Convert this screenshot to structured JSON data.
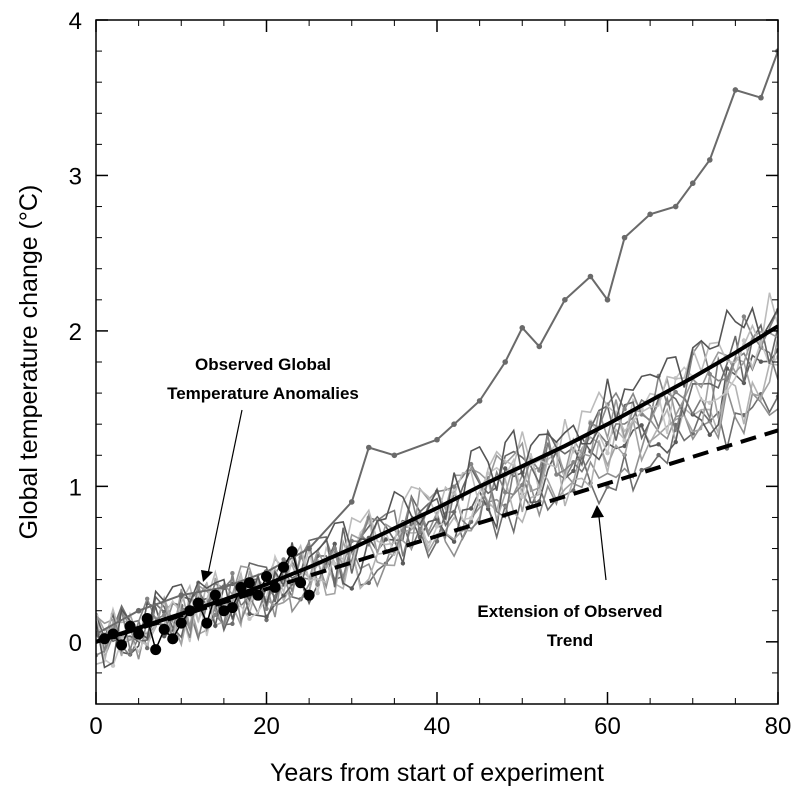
{
  "chart_data": {
    "type": "line",
    "title": "",
    "xlabel": "Years from start of experiment",
    "ylabel": "Global temperature change (°C)",
    "xlim": [
      0,
      80
    ],
    "ylim": [
      -0.4,
      4
    ],
    "xticks": [
      0,
      20,
      40,
      60,
      80
    ],
    "yticks": [
      0,
      1,
      2,
      3,
      4
    ],
    "grid": false,
    "legend": "none",
    "colors": {
      "ensemble": [
        "#6e6e6e",
        "#8f8f8f",
        "#b3b3b3",
        "#5a5a5a",
        "#a3a3a3",
        "#7b7b7b",
        "#c6c6c6",
        "#676767",
        "#9a9a9a",
        "#848484",
        "#bcbcbc",
        "#555555"
      ],
      "high_member": "#6a6a6a",
      "mean": "#000000",
      "observed": "#000000",
      "trend": "#000000"
    },
    "annotations": {
      "observed": [
        "Observed Global",
        "Temperature Anomalies"
      ],
      "trend": [
        "Extension of Observed",
        "Trend"
      ]
    },
    "series": [
      {
        "role": "high_member",
        "x": [
          0,
          5,
          10,
          15,
          20,
          25,
          30,
          32,
          35,
          40,
          42,
          45,
          48,
          50,
          52,
          55,
          58,
          60,
          62,
          65,
          68,
          70,
          72,
          75,
          78,
          80
        ],
        "y": [
          0.05,
          0.2,
          0.3,
          0.35,
          0.45,
          0.6,
          0.9,
          1.25,
          1.2,
          1.3,
          1.4,
          1.55,
          1.8,
          2.02,
          1.9,
          2.2,
          2.35,
          2.2,
          2.6,
          2.75,
          2.8,
          2.95,
          3.1,
          3.55,
          3.5,
          3.8
        ]
      },
      {
        "role": "ensemble_mean",
        "x": [
          0,
          5,
          10,
          15,
          20,
          25,
          30,
          35,
          40,
          45,
          50,
          55,
          60,
          65,
          70,
          75,
          80
        ],
        "y": [
          0.0,
          0.09,
          0.18,
          0.27,
          0.37,
          0.48,
          0.6,
          0.73,
          0.86,
          1.0,
          1.13,
          1.26,
          1.4,
          1.55,
          1.7,
          1.86,
          2.03
        ]
      },
      {
        "role": "trend",
        "x": [
          0,
          10,
          20,
          30,
          40,
          50,
          60,
          70,
          80
        ],
        "y": [
          0.0,
          0.17,
          0.34,
          0.51,
          0.68,
          0.85,
          1.02,
          1.19,
          1.36
        ]
      },
      {
        "role": "observed",
        "x": [
          1,
          2,
          3,
          4,
          5,
          6,
          7,
          8,
          9,
          10,
          11,
          12,
          13,
          14,
          15,
          16,
          17,
          18,
          19,
          20,
          21,
          22,
          23,
          24,
          25
        ],
        "y": [
          0.02,
          0.05,
          -0.02,
          0.1,
          0.05,
          0.15,
          -0.05,
          0.08,
          0.02,
          0.12,
          0.2,
          0.25,
          0.12,
          0.3,
          0.2,
          0.22,
          0.35,
          0.38,
          0.3,
          0.42,
          0.35,
          0.48,
          0.58,
          0.38,
          0.3
        ]
      }
    ]
  }
}
